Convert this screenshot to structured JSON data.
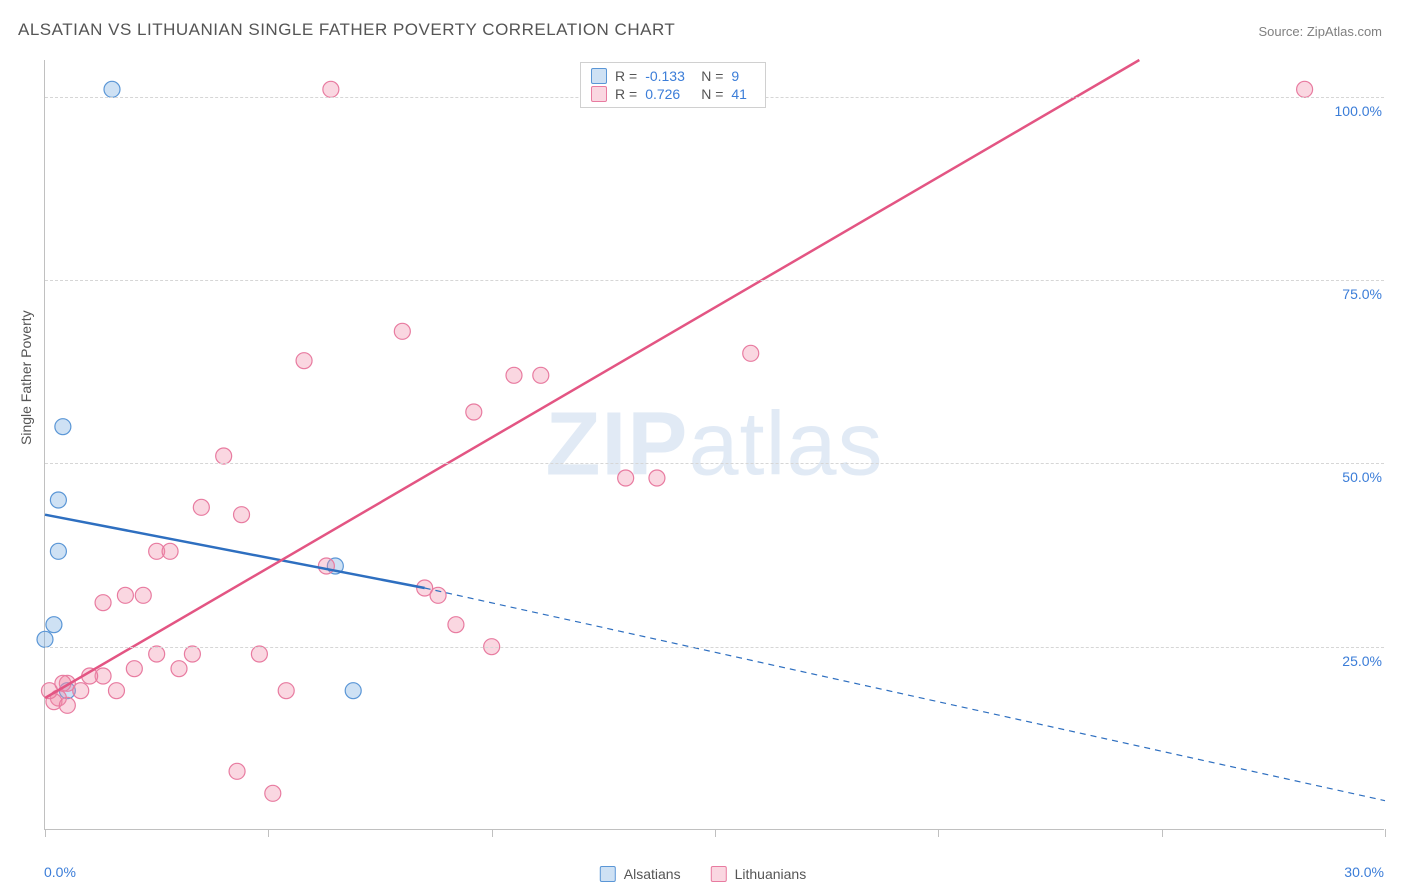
{
  "title": "ALSATIAN VS LITHUANIAN SINGLE FATHER POVERTY CORRELATION CHART",
  "source": "Source: ZipAtlas.com",
  "y_axis_title": "Single Father Poverty",
  "watermark": {
    "zip": "ZIP",
    "atlas": "atlas"
  },
  "chart": {
    "type": "scatter-correlation",
    "background_color": "#ffffff",
    "grid_color": "#d6d6d6",
    "axis_color": "#c0c0c0",
    "xlim": [
      0,
      30
    ],
    "ylim": [
      0,
      105
    ],
    "xtick_positions": [
      0,
      5,
      10,
      15,
      20,
      25,
      30
    ],
    "xtick_labels": [
      "0.0%",
      "",
      "",
      "",
      "",
      "",
      "30.0%"
    ],
    "ygrid_positions": [
      25,
      50,
      75,
      100
    ],
    "ytick_labels": [
      "25.0%",
      "50.0%",
      "75.0%",
      "100.0%"
    ],
    "marker_radius": 8,
    "marker_stroke_width": 1.2,
    "line_width": 2.5,
    "dash_pattern": "6,5",
    "series": [
      {
        "name": "Alsatians",
        "color_fill": "rgba(115,168,224,0.35)",
        "color_stroke": "#5a96d6",
        "line_color": "#2e6fc0",
        "R": "-0.133",
        "N": "9",
        "points": [
          [
            1.5,
            101
          ],
          [
            0.4,
            55
          ],
          [
            0.3,
            45
          ],
          [
            0.3,
            38
          ],
          [
            0.2,
            28
          ],
          [
            0.0,
            26
          ],
          [
            0.5,
            19
          ],
          [
            6.5,
            36
          ],
          [
            6.9,
            19
          ]
        ],
        "trend_solid": {
          "x1": 0,
          "y1": 43,
          "x2": 8.5,
          "y2": 33
        },
        "trend_dashed": {
          "x1": 8.5,
          "y1": 33,
          "x2": 30,
          "y2": 4
        }
      },
      {
        "name": "Lithuanians",
        "color_fill": "rgba(240,140,170,0.35)",
        "color_stroke": "#e87ba0",
        "line_color": "#e35583",
        "R": "0.726",
        "N": "41",
        "points": [
          [
            6.4,
            101
          ],
          [
            28.2,
            101
          ],
          [
            8.0,
            68
          ],
          [
            5.8,
            64
          ],
          [
            10.5,
            62
          ],
          [
            11.1,
            62
          ],
          [
            15.8,
            65
          ],
          [
            9.6,
            57
          ],
          [
            13.0,
            48
          ],
          [
            13.7,
            48
          ],
          [
            4.0,
            51
          ],
          [
            3.5,
            44
          ],
          [
            4.4,
            43
          ],
          [
            2.5,
            38
          ],
          [
            2.8,
            38
          ],
          [
            6.3,
            36
          ],
          [
            8.5,
            33
          ],
          [
            8.8,
            32
          ],
          [
            1.3,
            31
          ],
          [
            1.8,
            32
          ],
          [
            2.2,
            32
          ],
          [
            2.5,
            24
          ],
          [
            3.0,
            22
          ],
          [
            3.3,
            24
          ],
          [
            2.0,
            22
          ],
          [
            1.3,
            21
          ],
          [
            1.6,
            19
          ],
          [
            1.0,
            21
          ],
          [
            0.5,
            20
          ],
          [
            0.3,
            18
          ],
          [
            0.2,
            17.5
          ],
          [
            0.5,
            17
          ],
          [
            4.8,
            24
          ],
          [
            5.4,
            19
          ],
          [
            9.2,
            28
          ],
          [
            10.0,
            25
          ],
          [
            4.3,
            8
          ],
          [
            5.1,
            5
          ],
          [
            0.1,
            19
          ],
          [
            0.4,
            20
          ],
          [
            0.8,
            19
          ]
        ],
        "trend_solid": {
          "x1": 0,
          "y1": 18,
          "x2": 24.5,
          "y2": 105
        },
        "trend_dashed": null
      }
    ],
    "legend_bottom": [
      {
        "label": "Alsatians",
        "fill": "rgba(115,168,224,0.35)",
        "stroke": "#5a96d6"
      },
      {
        "label": "Lithuanians",
        "fill": "rgba(240,140,170,0.35)",
        "stroke": "#e87ba0"
      }
    ],
    "stats_box": {
      "rows": [
        {
          "fill": "rgba(115,168,224,0.35)",
          "stroke": "#5a96d6",
          "r_label": "R =",
          "r_val": "-0.133",
          "n_label": "N =",
          "n_val": "9"
        },
        {
          "fill": "rgba(240,140,170,0.35)",
          "stroke": "#e87ba0",
          "r_label": "R =",
          "r_val": "0.726",
          "n_label": "N =",
          "n_val": "41"
        }
      ]
    },
    "title_fontsize": 17,
    "label_fontsize": 14,
    "tick_color": "#3b7dd8"
  }
}
